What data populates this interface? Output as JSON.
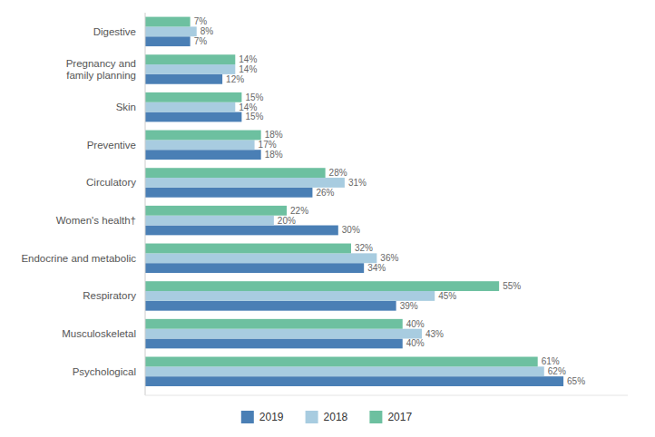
{
  "chart_data": {
    "type": "bar",
    "orientation": "horizontal",
    "categories": [
      "Psychological",
      "Musculoskeletal",
      "Respiratory",
      "Endocrine and metabolic",
      "Women's health†",
      "Circulatory",
      "Preventive",
      "Skin",
      "Pregnancy and\nfamily planning",
      "Digestive"
    ],
    "series": [
      {
        "name": "2019",
        "color": "#4a7fb5",
        "values": [
          65,
          40,
          39,
          34,
          30,
          26,
          18,
          15,
          12,
          7
        ],
        "value_labels": [
          "65%",
          "40%",
          "39%",
          "34%",
          "30%",
          "26%",
          "18%",
          "15%",
          "12%",
          "7%"
        ]
      },
      {
        "name": "2018",
        "color": "#a8cce0",
        "values": [
          62,
          43,
          45,
          36,
          20,
          31,
          17,
          14,
          14,
          8
        ],
        "value_labels": [
          "62%",
          "43%",
          "45%",
          "36%",
          "20%",
          "31%",
          "17%",
          "14%",
          "14%",
          "8%"
        ]
      },
      {
        "name": "2017",
        "color": "#6dc0a0",
        "values": [
          61,
          40,
          55,
          32,
          22,
          28,
          18,
          15,
          14,
          7
        ],
        "value_labels": [
          "61%",
          "40%",
          "55%",
          "32%",
          "22%",
          "28%",
          "18%",
          "15%",
          "14%",
          "7%"
        ]
      }
    ],
    "xlim": [
      0,
      75
    ],
    "data_labels": true,
    "tick_labels": "y",
    "grid": false,
    "legend": "bottom"
  }
}
